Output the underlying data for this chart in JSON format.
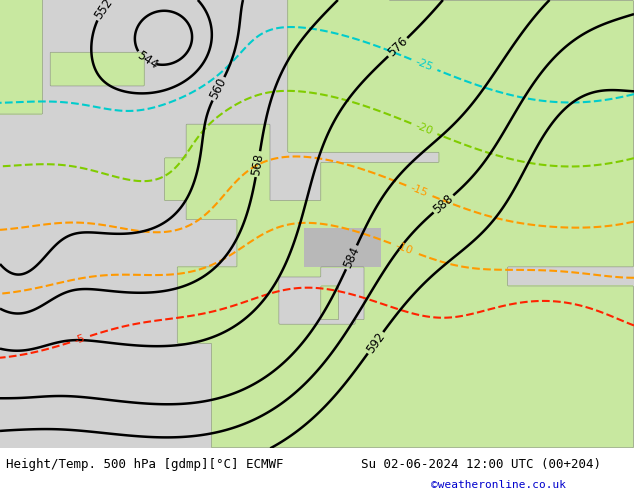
{
  "title_left": "Height/Temp. 500 hPa [gdmp][°C] ECMWF",
  "title_right": "Su 02-06-2024 12:00 UTC (00+204)",
  "credit": "©weatheronline.co.uk",
  "credit_color": "#0000cc",
  "bar_bg": "#d8d8d8",
  "title_fontsize": 9,
  "credit_fontsize": 8,
  "sea_color": "#d2d2d2",
  "land_green": "#c8e8a0",
  "land_gray": "#b8b8b8",
  "height_color": "#000000",
  "temp_cyan_color": "#00cccc",
  "temp_green_color": "#80cc00",
  "temp_orange_color": "#ff9900",
  "temp_red_color": "#ff2200"
}
